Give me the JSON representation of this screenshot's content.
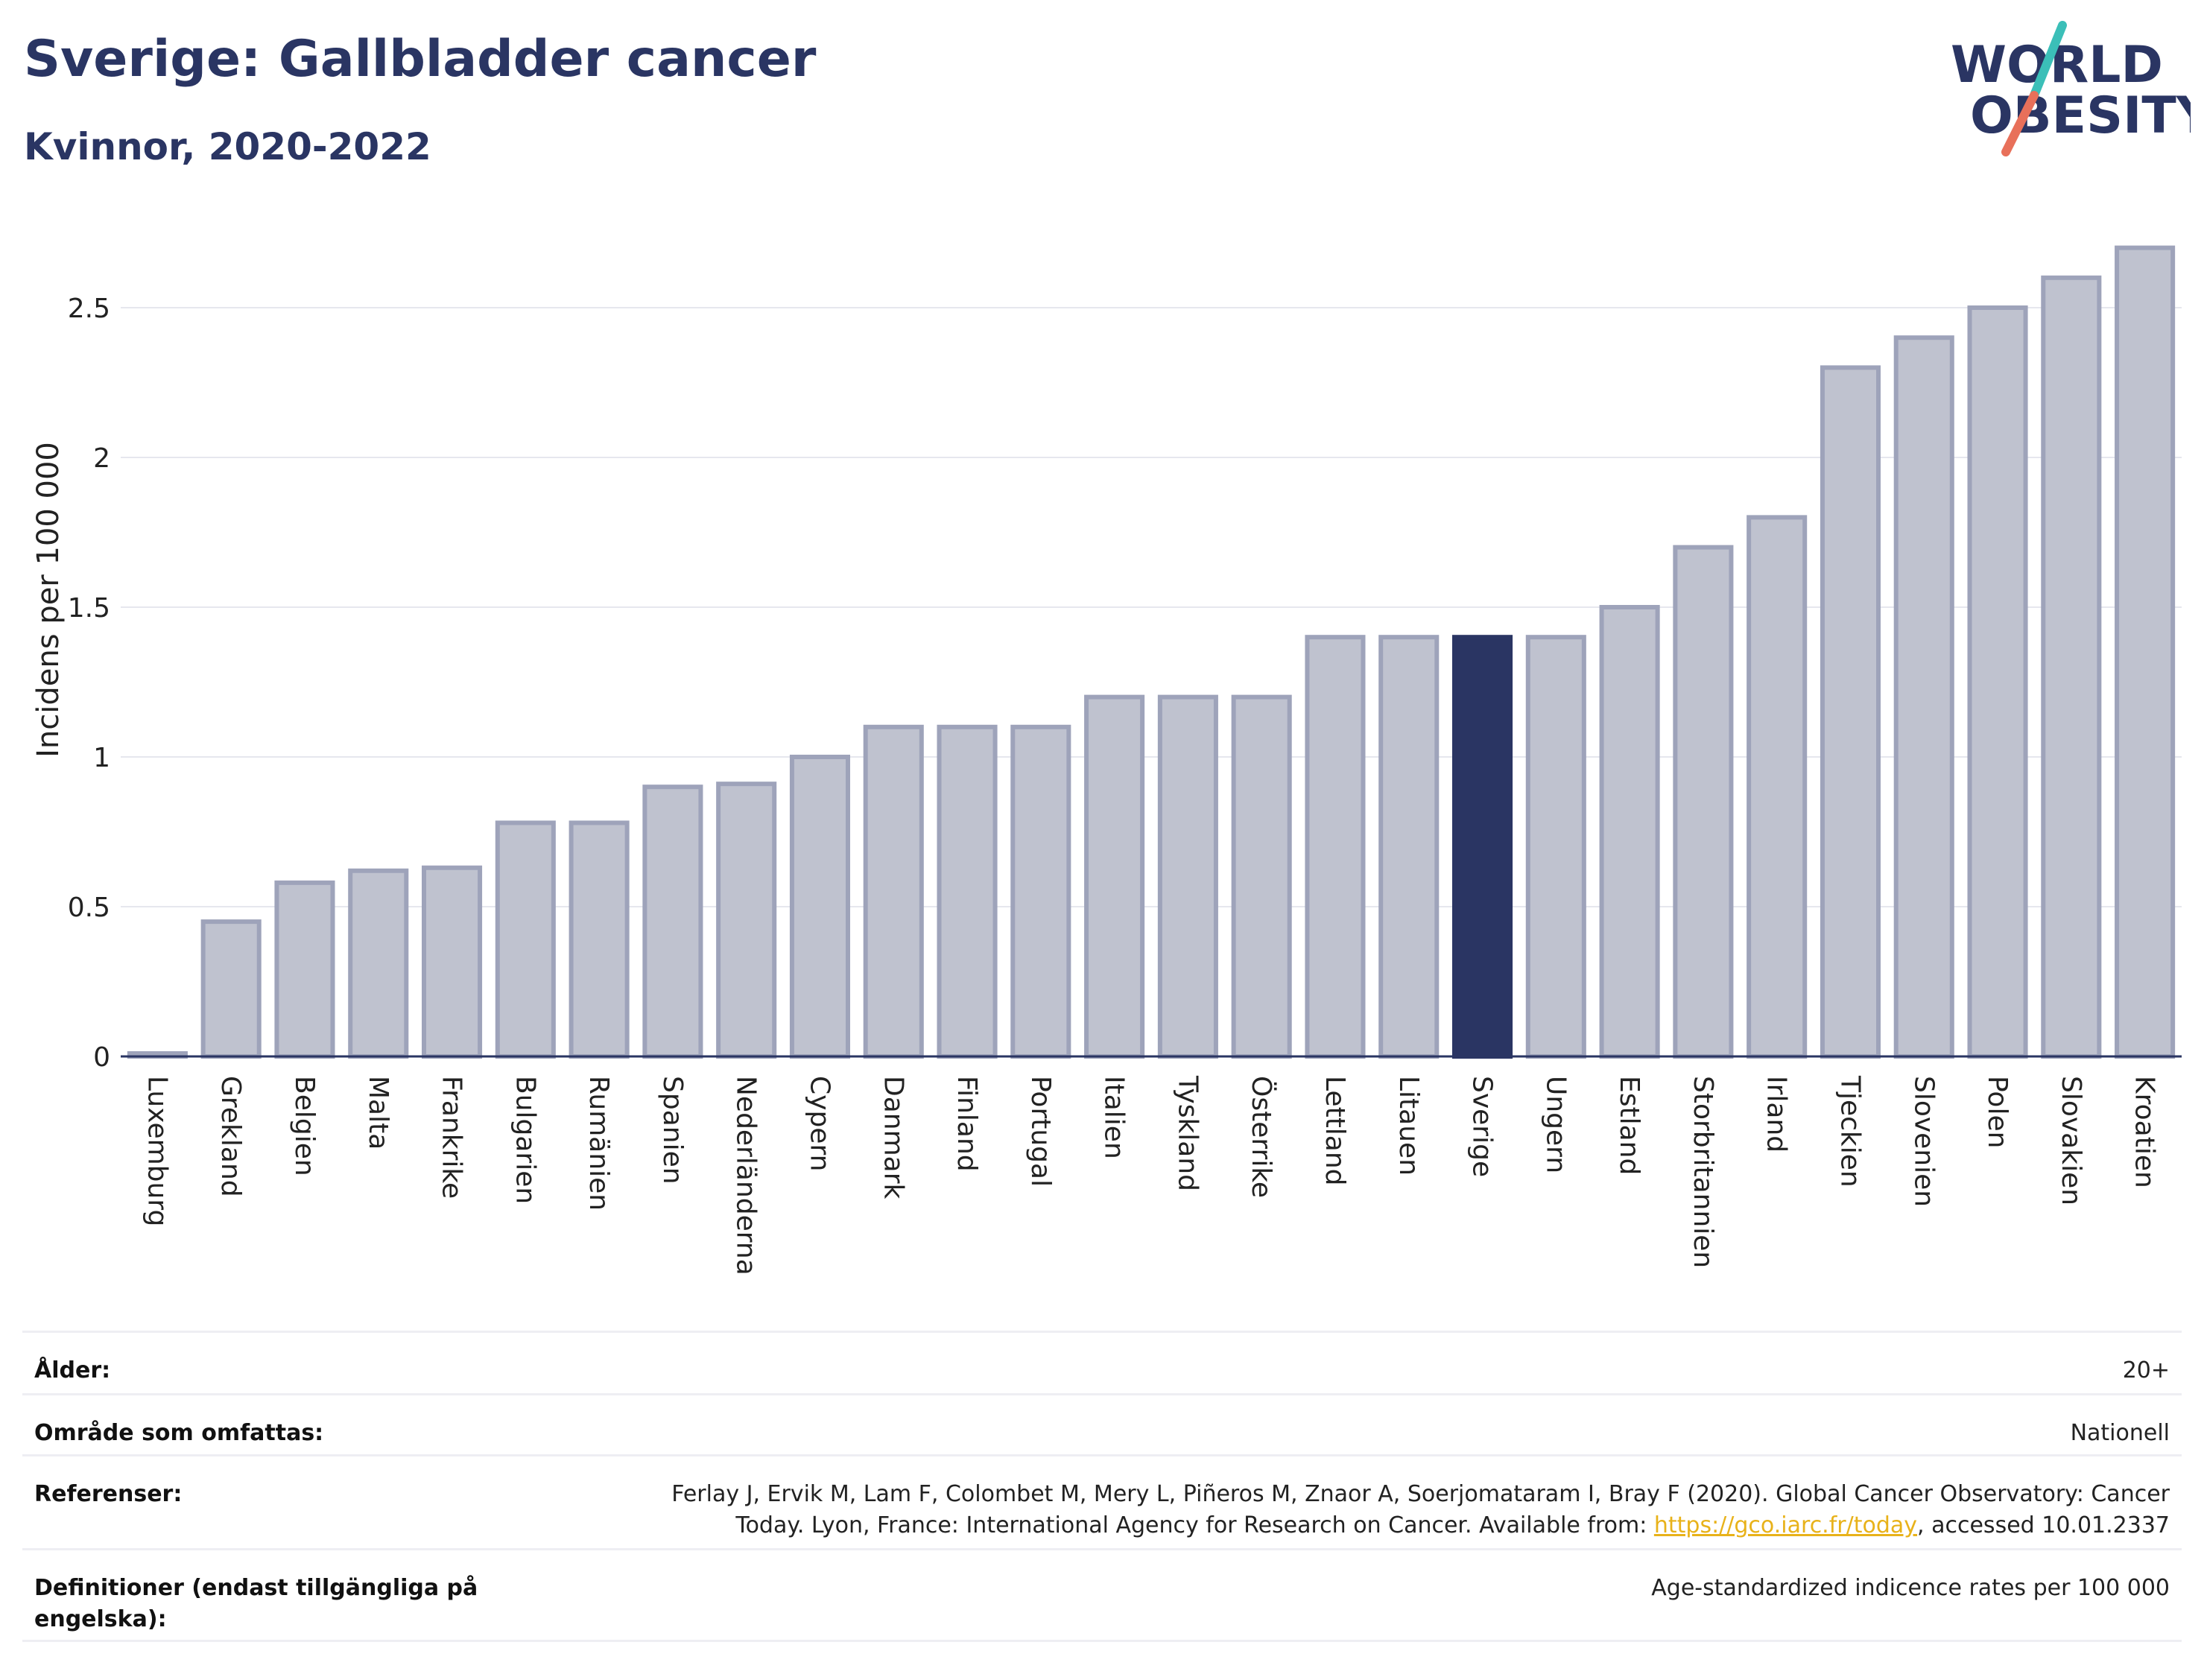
{
  "header": {
    "title": "Sverige: Gallbladder cancer",
    "subtitle": "Kvinnor, 2020-2022"
  },
  "logo": {
    "line1": "WORLD",
    "line2": "OBESITY",
    "colors": {
      "text": "#2a3563",
      "slash_teal": "#3bbfb8",
      "slash_coral": "#e8705a"
    }
  },
  "chart_data": {
    "type": "bar",
    "ylabel": "Incidens per 100 000",
    "xlabel": "",
    "ylim": [
      0,
      2.75
    ],
    "yticks": [
      0,
      0.5,
      1,
      1.5,
      2,
      2.5
    ],
    "ytick_labels": [
      "0",
      "0.5",
      "1",
      "1.5",
      "2",
      "2.5"
    ],
    "grid": true,
    "highlight": "Sverige",
    "colors": {
      "bar": "#bfc2cf",
      "bar_edge": "#9ea3ba",
      "highlight": "#2a3563",
      "grid": "#e6e7ee",
      "axis": "#2a3563"
    },
    "categories": [
      "Luxemburg",
      "Grekland",
      "Belgien",
      "Malta",
      "Frankrike",
      "Bulgarien",
      "Rumänien",
      "Spanien",
      "Nederländerna",
      "Cypern",
      "Danmark",
      "Finland",
      "Portugal",
      "Italien",
      "Tyskland",
      "Österrike",
      "Lettland",
      "Litauen",
      "Sverige",
      "Ungern",
      "Estland",
      "Storbritannien",
      "Irland",
      "Tjeckien",
      "Slovenien",
      "Polen",
      "Slovakien",
      "Kroatien"
    ],
    "values": [
      0.01,
      0.45,
      0.58,
      0.62,
      0.63,
      0.78,
      0.78,
      0.9,
      0.91,
      1.0,
      1.1,
      1.1,
      1.1,
      1.2,
      1.2,
      1.2,
      1.4,
      1.4,
      1.4,
      1.4,
      1.5,
      1.7,
      1.8,
      2.3,
      2.4,
      2.5,
      2.6,
      2.7
    ]
  },
  "meta": {
    "age_label": "Ålder:",
    "age_value": "20+",
    "area_label": "Område som omfattas:",
    "area_value": "Nationell",
    "ref_label": "Referenser:",
    "ref_line1": "Ferlay J, Ervik M, Lam F, Colombet M, Mery L, Piñeros M, Znaor A, Soerjomataram I, Bray F (2020). Global Cancer Observatory: Cancer",
    "ref_line2_prefix": "Today. Lyon, France: International Agency for Research on Cancer. Available from: ",
    "ref_link": "https://gco.iarc.fr/today",
    "ref_line2_suffix": ", accessed 10.01.2337",
    "def_label": "Definitioner (endast tillgängliga på engelska):",
    "def_value": "Age-standardized indicence rates per 100 000"
  }
}
